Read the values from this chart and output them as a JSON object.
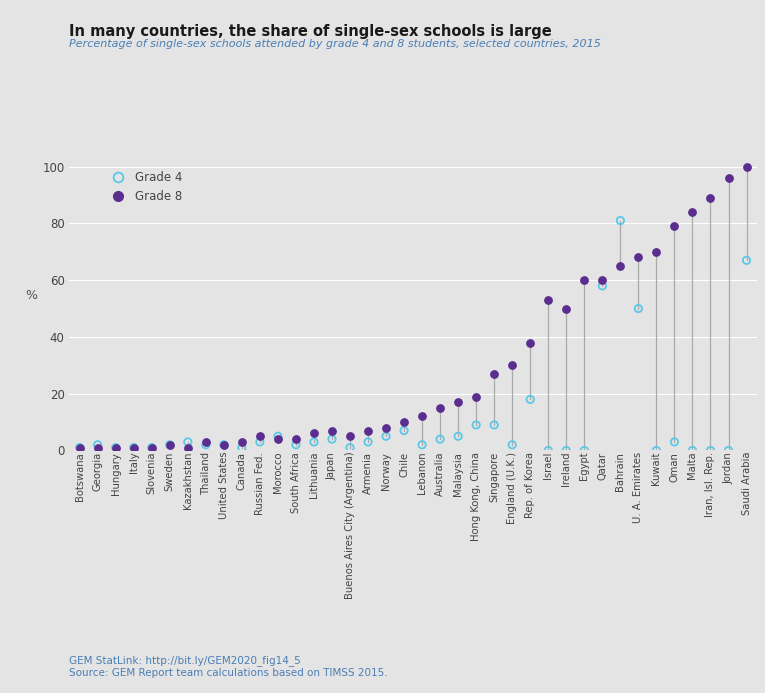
{
  "title": "In many countries, the share of single-sex schools is large",
  "subtitle": "Percentage of single-sex schools attended by grade 4 and 8 students, selected countries, 2015",
  "ylabel": "%",
  "source_line1": "GEM StatLink: http://bit.ly/GEM2020_fig14_5",
  "source_line2": "Source: GEM Report team calculations based on TIMSS 2015.",
  "background_color": "#e4e4e4",
  "countries": [
    "Botswana",
    "Georgia",
    "Hungary",
    "Italy",
    "Slovenia",
    "Sweden",
    "Kazakhstan",
    "Thailand",
    "United States",
    "Canada",
    "Russian Fed.",
    "Morocco",
    "South Africa",
    "Lithuania",
    "Japan",
    "Buenos Aires City (Argentina)",
    "Armenia",
    "Norway",
    "Chile",
    "Lebanon",
    "Australia",
    "Malaysia",
    "Hong Kong, China",
    "Singapore",
    "England (U.K.)",
    "Rep. of Korea",
    "Israel",
    "Ireland",
    "Egypt",
    "Qatar",
    "Bahrain",
    "U. A. Emirates",
    "Kuwait",
    "Oman",
    "Malta",
    "Iran, Isl. Rep.",
    "Jordan",
    "Saudi Arabia"
  ],
  "grade4": [
    1,
    2,
    1,
    1,
    1,
    2,
    3,
    2,
    2,
    1,
    3,
    5,
    2,
    3,
    4,
    1,
    3,
    5,
    7,
    2,
    4,
    5,
    9,
    9,
    2,
    18,
    0,
    0,
    0,
    58,
    81,
    50,
    0,
    3,
    0,
    0,
    0,
    67
  ],
  "grade8": [
    1,
    1,
    1,
    1,
    1,
    2,
    1,
    3,
    2,
    3,
    5,
    4,
    4,
    6,
    7,
    5,
    7,
    8,
    10,
    12,
    15,
    17,
    19,
    27,
    30,
    38,
    53,
    50,
    60,
    60,
    65,
    68,
    70,
    79,
    84,
    89,
    96,
    100
  ],
  "grade4_color": "#5bc8e8",
  "grade8_color": "#5b2d8e",
  "connector_color": "#aaaaaa",
  "ylim": [
    0,
    105
  ],
  "yticks": [
    0,
    20,
    40,
    60,
    80,
    100
  ]
}
